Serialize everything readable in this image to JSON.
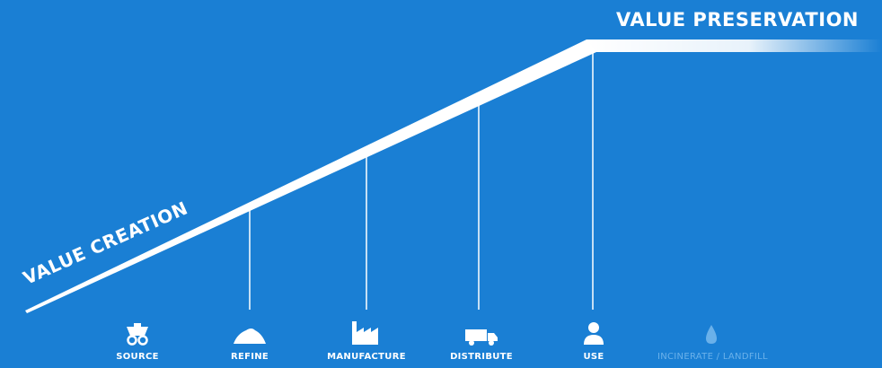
{
  "header": {
    "title": "VALUE PRESERVATION"
  },
  "curve": {
    "label": "VALUE CREATION"
  },
  "stages": [
    {
      "label": "SOURCE",
      "icon": "mining-cart-icon"
    },
    {
      "label": "REFINE",
      "icon": "mound-icon"
    },
    {
      "label": "MANUFACTURE",
      "icon": "factory-icon"
    },
    {
      "label": "DISTRIBUTE",
      "icon": "truck-icon"
    },
    {
      "label": "USE",
      "icon": "person-icon"
    },
    {
      "label": "INCINERATE / LANDFILL",
      "icon": "drop-icon",
      "faded": true
    }
  ],
  "colors": {
    "background": "#1a7fd4",
    "line": "#ffffff",
    "faded": "#6ab1ea"
  }
}
